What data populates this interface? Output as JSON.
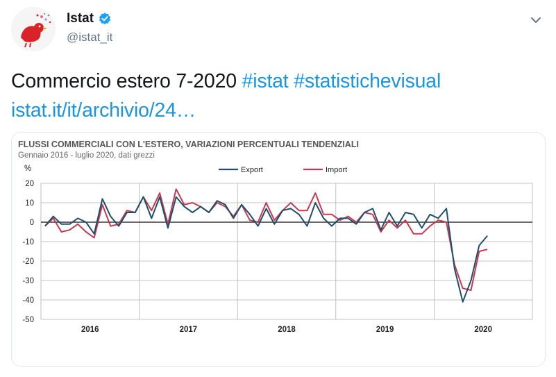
{
  "tweet": {
    "display_name": "Istat",
    "handle": "@istat_it",
    "text_plain": "Commercio estero 7-2020 ",
    "hashtags": "#istat #statistichevisual",
    "link": "istat.it/it/archivio/24…"
  },
  "icons": {
    "avatar": "istat-bird-logo",
    "verified": "verified-badge-icon",
    "menu": "chevron-down-icon"
  },
  "colors": {
    "link": "#1b95e0",
    "verified": "#1da1f2",
    "export": "#1f4e6b",
    "import": "#c8374f"
  },
  "chart_data": {
    "type": "line",
    "title": "FLUSSI COMMERCIALI CON L'ESTERO, VARIAZIONI PERCENTUALI TENDENZIALI",
    "subtitle": "Gennaio 2016 - luglio 2020, dati grezzi",
    "ylabel": "%",
    "ylim": [
      -50,
      20
    ],
    "yticks": [
      "20",
      "10",
      "0",
      "-10",
      "-20",
      "-30",
      "-40",
      "-50"
    ],
    "xlabels": [
      "2016",
      "2017",
      "2018",
      "2019",
      "2020"
    ],
    "legend_position": "top",
    "grid": true,
    "x_start": "2016-01",
    "x_end": "2020-07",
    "series": [
      {
        "name": "Export",
        "values": [
          -2,
          3,
          -1,
          -1,
          2,
          0,
          -6,
          12,
          3,
          -2,
          5,
          5,
          13,
          2,
          13,
          -3,
          13,
          8,
          5,
          8,
          5,
          11,
          9,
          2,
          9,
          4,
          -2,
          7,
          -1,
          6,
          7,
          4,
          -2,
          10,
          2,
          -2,
          2,
          2,
          -1,
          5,
          7,
          -4,
          5,
          -2,
          5,
          4,
          -3,
          4,
          2,
          7,
          -24,
          -41,
          -30,
          -12,
          -7
        ]
      },
      {
        "name": "Import",
        "values": [
          -2,
          2,
          -5,
          -4,
          -1,
          -5,
          -8,
          9,
          -2,
          -1,
          6,
          5,
          13,
          6,
          15,
          -1,
          17,
          9,
          10,
          8,
          5,
          10,
          8,
          3,
          9,
          1,
          0,
          10,
          1,
          6,
          10,
          6,
          6,
          15,
          4,
          4,
          1,
          3,
          0,
          5,
          4,
          -5,
          1,
          -3,
          1,
          -6,
          -6,
          -2,
          1,
          0,
          -22,
          -34,
          -35,
          -15,
          -14
        ]
      }
    ]
  }
}
